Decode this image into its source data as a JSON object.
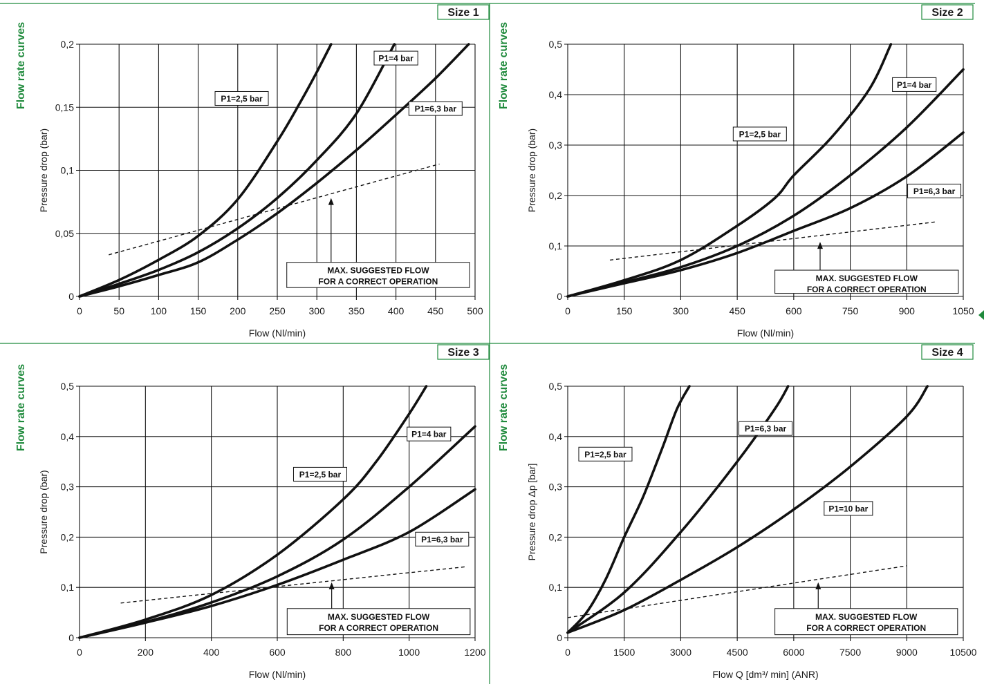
{
  "colors": {
    "accent": "#1f8a3c",
    "grid": "#111111",
    "curve": "#111111"
  },
  "chart_data": [
    {
      "type": "line",
      "size_tag": "Size 1",
      "side_label": "Flow rate curves",
      "xlabel": "Flow (Nl/min)",
      "ylabel": "Pressure drop (bar)",
      "xlim": [
        0,
        500
      ],
      "ylim": [
        0,
        0.2
      ],
      "x_ticks": [
        0,
        50,
        100,
        150,
        200,
        250,
        300,
        350,
        400,
        450,
        500
      ],
      "x_tick_labels": [
        "0",
        "50",
        "100",
        "150",
        "200",
        "250",
        "300",
        "350",
        "400",
        "450",
        "500"
      ],
      "y_ticks": [
        0,
        0.05,
        0.1,
        0.15,
        0.2
      ],
      "y_tick_labels": [
        "0",
        "0,05",
        "0,1",
        "0,15",
        "0,2"
      ],
      "series": [
        {
          "name": "P1=2,5 bar",
          "points": [
            [
              0,
              0
            ],
            [
              50,
              0.013
            ],
            [
              100,
              0.029
            ],
            [
              150,
              0.048
            ],
            [
              200,
              0.077
            ],
            [
              250,
              0.123
            ],
            [
              280,
              0.155
            ],
            [
              300,
              0.178
            ],
            [
              318,
              0.2
            ]
          ]
        },
        {
          "name": "P1=4 bar",
          "points": [
            [
              0,
              0
            ],
            [
              50,
              0.01
            ],
            [
              100,
              0.021
            ],
            [
              150,
              0.035
            ],
            [
              200,
              0.054
            ],
            [
              250,
              0.078
            ],
            [
              300,
              0.108
            ],
            [
              350,
              0.145
            ],
            [
              398,
              0.2
            ]
          ]
        },
        {
          "name": "P1=6,3 bar",
          "points": [
            [
              0,
              0
            ],
            [
              50,
              0.008
            ],
            [
              100,
              0.017
            ],
            [
              150,
              0.027
            ],
            [
              200,
              0.045
            ],
            [
              250,
              0.066
            ],
            [
              300,
              0.09
            ],
            [
              350,
              0.116
            ],
            [
              400,
              0.144
            ],
            [
              450,
              0.173
            ],
            [
              492,
              0.2
            ]
          ]
        },
        {
          "name": "MAX. SUGGESTED FLOW",
          "style": "dashed",
          "points": [
            [
              37,
              0.033
            ],
            [
              455,
              0.105
            ]
          ]
        }
      ],
      "series_labels": [
        {
          "text": "P1=2,5 bar",
          "x": 205,
          "y": 0.157
        },
        {
          "text": "P1=4 bar",
          "x": 400,
          "y": 0.189
        },
        {
          "text": "P1=6,3 bar",
          "x": 450,
          "y": 0.149
        }
      ],
      "note": {
        "lines": [
          "MAX. SUGGESTED FLOW",
          "FOR A CORRECT OPERATION"
        ],
        "x0": 262,
        "x1": 493,
        "y_top": 0.027,
        "y_bot": 0.007,
        "arrow_x": 318,
        "arrow_from": 0.027,
        "arrow_to": 0.078
      }
    },
    {
      "type": "line",
      "size_tag": "Size 2",
      "side_label": "Flow rate curves",
      "xlabel": "Flow (Nl/min)",
      "ylabel": "Pressure drop (bar)",
      "xlim": [
        0,
        1050
      ],
      "ylim": [
        0,
        0.5
      ],
      "x_ticks": [
        0,
        150,
        300,
        450,
        600,
        750,
        900,
        1050
      ],
      "x_tick_labels": [
        "0",
        "150",
        "300",
        "450",
        "600",
        "750",
        "900",
        "1050"
      ],
      "y_ticks": [
        0,
        0.1,
        0.2,
        0.3,
        0.4,
        0.5
      ],
      "y_tick_labels": [
        "0",
        "0,1",
        "0,2",
        "0,3",
        "0,4",
        "0,5"
      ],
      "series": [
        {
          "name": "P1=2,5 bar",
          "points": [
            [
              0,
              0
            ],
            [
              150,
              0.032
            ],
            [
              300,
              0.072
            ],
            [
              450,
              0.14
            ],
            [
              550,
              0.195
            ],
            [
              600,
              0.24
            ],
            [
              700,
              0.315
            ],
            [
              800,
              0.41
            ],
            [
              858,
              0.5
            ]
          ]
        },
        {
          "name": "P1=4 bar",
          "points": [
            [
              0,
              0
            ],
            [
              150,
              0.028
            ],
            [
              300,
              0.058
            ],
            [
              450,
              0.1
            ],
            [
              600,
              0.16
            ],
            [
              750,
              0.24
            ],
            [
              900,
              0.335
            ],
            [
              1050,
              0.45
            ]
          ]
        },
        {
          "name": "P1=6,3 bar",
          "points": [
            [
              0,
              0
            ],
            [
              150,
              0.026
            ],
            [
              300,
              0.052
            ],
            [
              450,
              0.086
            ],
            [
              600,
              0.13
            ],
            [
              750,
              0.175
            ],
            [
              900,
              0.238
            ],
            [
              1050,
              0.325
            ]
          ]
        },
        {
          "name": "MAX. SUGGESTED FLOW",
          "style": "dashed",
          "points": [
            [
              112,
              0.072
            ],
            [
              980,
              0.148
            ]
          ]
        }
      ],
      "series_labels": [
        {
          "text": "P1=2,5 bar",
          "x": 510,
          "y": 0.322
        },
        {
          "text": "P1=4 bar",
          "x": 920,
          "y": 0.42
        },
        {
          "text": "P1=6,3 bar",
          "x": 973,
          "y": 0.209
        }
      ],
      "note": {
        "lines": [
          "MAX. SUGGESTED FLOW",
          "FOR A CORRECT OPERATION"
        ],
        "x0": 550,
        "x1": 1037,
        "y_top": 0.052,
        "y_bot": 0.006,
        "arrow_x": 670,
        "arrow_from": 0.052,
        "arrow_to": 0.108
      }
    },
    {
      "type": "line",
      "size_tag": "Size 3",
      "side_label": "Flow rate curves",
      "xlabel": "Flow (Nl/min)",
      "ylabel": "Pressure drop (bar)",
      "xlim": [
        0,
        1200
      ],
      "ylim": [
        0,
        0.5
      ],
      "x_ticks": [
        0,
        200,
        400,
        600,
        800,
        1000,
        1200
      ],
      "x_tick_labels": [
        "0",
        "200",
        "400",
        "600",
        "800",
        "1000",
        "1200"
      ],
      "y_ticks": [
        0,
        0.1,
        0.2,
        0.3,
        0.4,
        0.5
      ],
      "y_tick_labels": [
        "0",
        "0,1",
        "0,2",
        "0,3",
        "0,4",
        "0,5"
      ],
      "series": [
        {
          "name": "P1=2,5 bar",
          "points": [
            [
              0,
              0
            ],
            [
              200,
              0.036
            ],
            [
              400,
              0.085
            ],
            [
              600,
              0.165
            ],
            [
              800,
              0.275
            ],
            [
              900,
              0.35
            ],
            [
              1000,
              0.445
            ],
            [
              1052,
              0.5
            ]
          ]
        },
        {
          "name": "P1=4 bar",
          "points": [
            [
              0,
              0
            ],
            [
              200,
              0.031
            ],
            [
              400,
              0.07
            ],
            [
              600,
              0.122
            ],
            [
              800,
              0.195
            ],
            [
              1000,
              0.3
            ],
            [
              1200,
              0.42
            ]
          ]
        },
        {
          "name": "P1=6,3 bar",
          "points": [
            [
              0,
              0
            ],
            [
              200,
              0.03
            ],
            [
              400,
              0.063
            ],
            [
              600,
              0.105
            ],
            [
              800,
              0.155
            ],
            [
              1000,
              0.21
            ],
            [
              1200,
              0.295
            ]
          ]
        },
        {
          "name": "MAX. SUGGESTED FLOW",
          "style": "dashed",
          "points": [
            [
              125,
              0.069
            ],
            [
              1170,
              0.141
            ]
          ]
        }
      ],
      "series_labels": [
        {
          "text": "P1=2,5 bar",
          "x": 730,
          "y": 0.325
        },
        {
          "text": "P1=4 bar",
          "x": 1060,
          "y": 0.405
        },
        {
          "text": "P1=6,3 bar",
          "x": 1100,
          "y": 0.196
        }
      ],
      "note": {
        "lines": [
          "MAX. SUGGESTED FLOW",
          "FOR A CORRECT OPERATION"
        ],
        "x0": 630,
        "x1": 1185,
        "y_top": 0.058,
        "y_bot": 0.006,
        "arrow_x": 765,
        "arrow_from": 0.058,
        "arrow_to": 0.11
      }
    },
    {
      "type": "line",
      "size_tag": "Size 4",
      "side_label": "Flow rate curves",
      "xlabel": "Flow Q [dm³/ min] (ANR)",
      "ylabel": "Pressure drop Δp [bar]",
      "xlim": [
        0,
        10500
      ],
      "ylim": [
        0,
        0.5
      ],
      "x_ticks": [
        0,
        1500,
        3000,
        4500,
        6000,
        7500,
        9000,
        10500
      ],
      "x_tick_labels": [
        "0",
        "1500",
        "3000",
        "4500",
        "6000",
        "7500",
        "9000",
        "10500"
      ],
      "y_ticks": [
        0,
        0.1,
        0.2,
        0.3,
        0.4,
        0.5
      ],
      "y_tick_labels": [
        "0",
        "0,1",
        "0,2",
        "0,3",
        "0,4",
        "0,5"
      ],
      "series": [
        {
          "name": "P1=2,5 bar",
          "points": [
            [
              0,
              0.01
            ],
            [
              500,
              0.05
            ],
            [
              1000,
              0.115
            ],
            [
              1500,
              0.2
            ],
            [
              2000,
              0.28
            ],
            [
              2500,
              0.375
            ],
            [
              2900,
              0.455
            ],
            [
              3230,
              0.5
            ]
          ]
        },
        {
          "name": "P1=6,3 bar",
          "points": [
            [
              0,
              0.01
            ],
            [
              1500,
              0.09
            ],
            [
              3000,
              0.21
            ],
            [
              4500,
              0.35
            ],
            [
              5500,
              0.455
            ],
            [
              5850,
              0.5
            ]
          ]
        },
        {
          "name": "P1=10 bar",
          "points": [
            [
              0,
              0.01
            ],
            [
              1500,
              0.055
            ],
            [
              3000,
              0.115
            ],
            [
              4500,
              0.18
            ],
            [
              6000,
              0.255
            ],
            [
              7500,
              0.34
            ],
            [
              9000,
              0.44
            ],
            [
              9550,
              0.5
            ]
          ]
        },
        {
          "name": "MAX. SUGGESTED FLOW",
          "style": "dashed",
          "points": [
            [
              0,
              0.04
            ],
            [
              9000,
              0.143
            ]
          ]
        }
      ],
      "series_labels": [
        {
          "text": "P1=2,5 bar",
          "x": 1000,
          "y": 0.365
        },
        {
          "text": "P1=6,3 bar",
          "x": 5250,
          "y": 0.416
        },
        {
          "text": "P1=10 bar",
          "x": 7450,
          "y": 0.257
        }
      ],
      "note": {
        "lines": [
          "MAX. SUGGESTED FLOW",
          "FOR A CORRECT OPERATION"
        ],
        "x0": 5500,
        "x1": 10350,
        "y_top": 0.058,
        "y_bot": 0.006,
        "arrow_x": 6650,
        "arrow_from": 0.058,
        "arrow_to": 0.11
      }
    }
  ]
}
